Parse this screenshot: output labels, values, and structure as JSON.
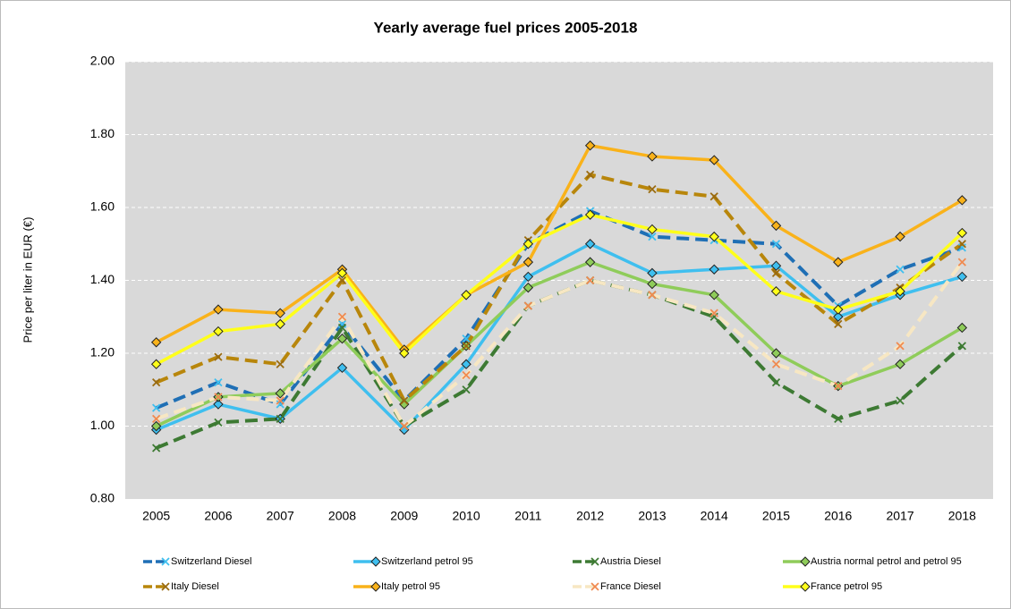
{
  "chart_data": {
    "type": "line",
    "title": "Yearly average fuel prices 2005-2018",
    "y_label": "Price per liter in EUR (€)",
    "categories": [
      "2005",
      "2006",
      "2007",
      "2008",
      "2009",
      "2010",
      "2011",
      "2012",
      "2013",
      "2014",
      "2015",
      "2016",
      "2017",
      "2018"
    ],
    "ylim": [
      0.8,
      2.0
    ],
    "yticks": [
      {
        "value": 0.8,
        "label": "0.80"
      },
      {
        "value": 1.0,
        "label": "1.00"
      },
      {
        "value": 1.2,
        "label": "1.20"
      },
      {
        "value": 1.4,
        "label": "1.40"
      },
      {
        "value": 1.6,
        "label": "1.60"
      },
      {
        "value": 1.8,
        "label": "1.80"
      },
      {
        "value": 2.0,
        "label": "2.00"
      }
    ],
    "grid": true,
    "legend": "bottom",
    "series": [
      {
        "name": "Switzerland Diesel",
        "color": "#1f6fb5",
        "marker": "x",
        "marker_color": "#3fbfef",
        "dashed": true,
        "values": [
          1.05,
          1.12,
          1.06,
          1.28,
          1.07,
          1.24,
          1.5,
          1.59,
          1.52,
          1.51,
          1.5,
          1.33,
          1.43,
          1.49
        ]
      },
      {
        "name": "Switzerland petrol 95",
        "color": "#3fbfef",
        "marker": "diamond",
        "marker_color": "#3fbfef",
        "dashed": false,
        "values": [
          0.99,
          1.06,
          1.02,
          1.16,
          0.99,
          1.17,
          1.41,
          1.5,
          1.42,
          1.43,
          1.44,
          1.3,
          1.36,
          1.41
        ]
      },
      {
        "name": "Austria Diesel",
        "color": "#3d7a33",
        "marker": "x",
        "marker_color": "#3d7a33",
        "dashed": true,
        "values": [
          0.94,
          1.01,
          1.02,
          1.27,
          1.0,
          1.1,
          1.33,
          1.4,
          1.36,
          1.3,
          1.12,
          1.02,
          1.07,
          1.22
        ]
      },
      {
        "name": "Austria normal petrol and petrol 95",
        "color": "#8fcc5a",
        "marker": "diamond",
        "marker_color": "#8fcc5a",
        "dashed": false,
        "values": [
          1.0,
          1.08,
          1.09,
          1.24,
          1.06,
          1.22,
          1.38,
          1.45,
          1.39,
          1.36,
          1.2,
          1.11,
          1.17,
          1.27
        ]
      },
      {
        "name": "Italy Diesel",
        "color": "#b8860b",
        "marker": "x",
        "marker_color": "#9a6b10",
        "dashed": true,
        "values": [
          1.12,
          1.19,
          1.17,
          1.4,
          1.07,
          1.22,
          1.51,
          1.69,
          1.65,
          1.63,
          1.42,
          1.28,
          1.38,
          1.5
        ]
      },
      {
        "name": "Italy petrol 95",
        "color": "#f9b21a",
        "marker": "diamond",
        "marker_color": "#f9b21a",
        "dashed": false,
        "values": [
          1.23,
          1.32,
          1.31,
          1.43,
          1.21,
          1.36,
          1.45,
          1.77,
          1.74,
          1.73,
          1.55,
          1.45,
          1.52,
          1.62
        ]
      },
      {
        "name": "France Diesel",
        "color": "#f7e7c3",
        "marker": "x",
        "marker_color": "#f08a50",
        "dashed": true,
        "values": [
          1.02,
          1.08,
          1.07,
          1.3,
          1.0,
          1.14,
          1.33,
          1.4,
          1.36,
          1.31,
          1.17,
          1.11,
          1.22,
          1.45
        ]
      },
      {
        "name": "France petrol 95",
        "color": "#ffff1a",
        "marker": "diamond",
        "marker_color": "#ffff1a",
        "dashed": false,
        "values": [
          1.17,
          1.26,
          1.28,
          1.42,
          1.2,
          1.36,
          1.5,
          1.58,
          1.54,
          1.52,
          1.37,
          1.32,
          1.37,
          1.53
        ]
      }
    ]
  }
}
